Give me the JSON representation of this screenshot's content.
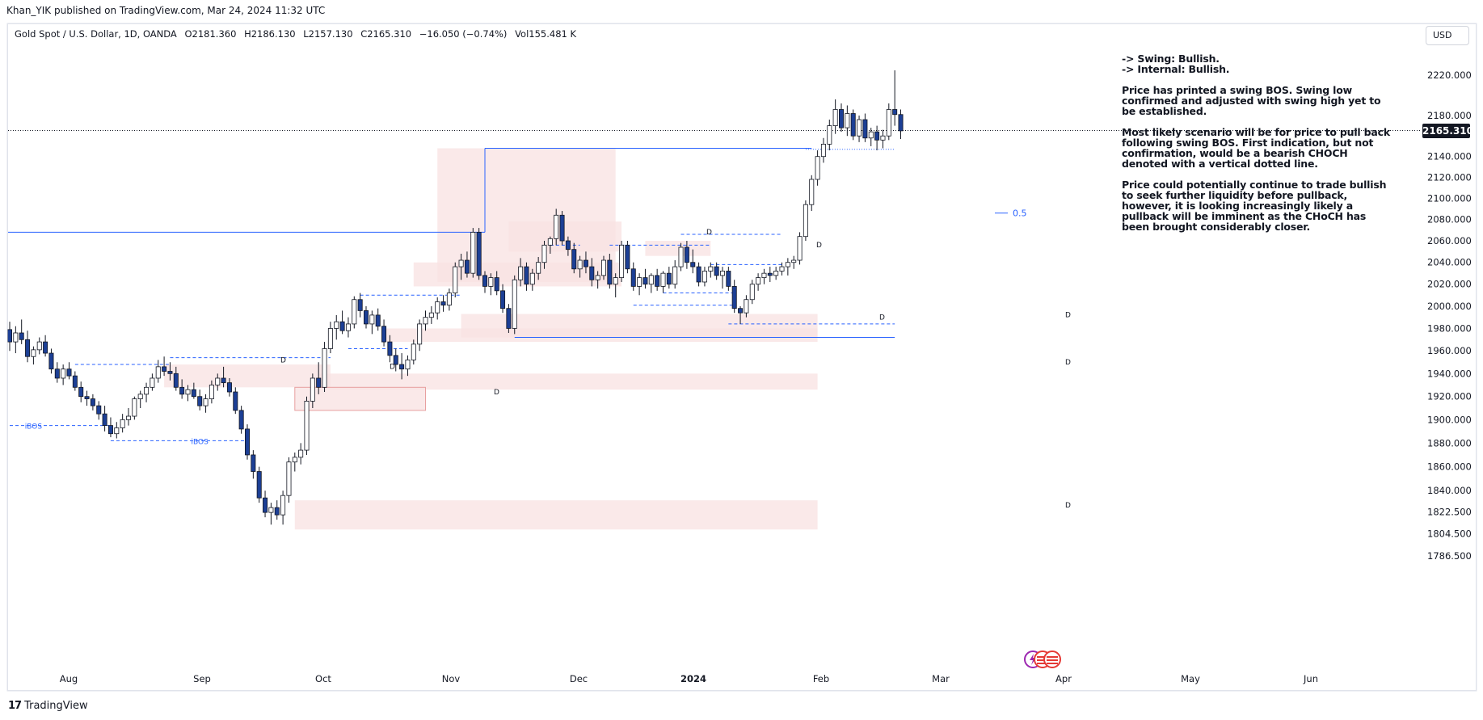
{
  "header": {
    "published": "Khan_YIK published on TradingView.com, Mar 24, 2024 11:32 UTC"
  },
  "symbol": {
    "name": "Gold Spot / U.S. Dollar, 1D, OANDA",
    "open": "O2181.360",
    "high": "H2186.130",
    "low": "L2157.130",
    "close": "C2165.310",
    "change": "−16.050 (−0.74%)",
    "volume": "Vol155.481 K"
  },
  "currency_button": "USD",
  "last_price_tag": "2165.310",
  "notes": {
    "line1": "-> Swing: Bullish.",
    "line2": "-> Internal: Bullish.",
    "p1": "Price has printed a swing BOS.  Swing low confirmed and adjusted with swing high yet to be established.",
    "p2": "Most likely scenario will be for price to pull back following swing BOS.  First indication, but not confirmation, would be a bearish CHOCH denoted with a vertical dotted line.",
    "p3": "Price could potentially continue to trade bullish to seek further liquidity before pullback, however, it is looking increasingly likely a pullback will be imminent as the CHoCH has been brought considerably closer."
  },
  "footer": {
    "brand": "TradingView"
  },
  "colors": {
    "bull_candle": "#ffffff",
    "bear_candle": "#1c3f95",
    "wick": "#131722",
    "zone_fill": "#f8e1e1",
    "level_line": "#2962ff",
    "grid": "#f0f3fa"
  },
  "chart_data": {
    "type": "candlestick",
    "title": "",
    "y_axis": {
      "ticks": [
        "2220.000",
        "2180.000",
        "2140.000",
        "2120.000",
        "2100.000",
        "2080.000",
        "2060.000",
        "2040.000",
        "2020.000",
        "2000.000",
        "1980.000",
        "1960.000",
        "1940.000",
        "1920.000",
        "1900.000",
        "1880.000",
        "1860.000",
        "1840.000",
        "1822.500",
        "1804.500",
        "1786.500"
      ],
      "scale": "log"
    },
    "x_axis": {
      "ticks": [
        "Aug",
        "Sep",
        "Oct",
        "Nov",
        "Dec",
        "2024",
        "Feb",
        "Mar",
        "Apr",
        "May",
        "Jun"
      ]
    },
    "last_price": 2165.31,
    "annotations": {
      "ibos_labels": [
        "iBOS",
        "iBOS"
      ],
      "zone_markers": [
        "D",
        "D",
        "D",
        "D",
        "D",
        "D",
        "D",
        "D",
        "D"
      ],
      "fib_label": "0.5"
    },
    "candles": [
      [
        1979,
        1986,
        1960,
        1968
      ],
      [
        1968,
        1982,
        1958,
        1976
      ],
      [
        1976,
        1988,
        1966,
        1970
      ],
      [
        1970,
        1978,
        1950,
        1955
      ],
      [
        1955,
        1964,
        1948,
        1961
      ],
      [
        1961,
        1972,
        1957,
        1968
      ],
      [
        1968,
        1974,
        1955,
        1958
      ],
      [
        1958,
        1962,
        1940,
        1944
      ],
      [
        1944,
        1950,
        1932,
        1936
      ],
      [
        1936,
        1948,
        1930,
        1944
      ],
      [
        1944,
        1950,
        1935,
        1938
      ],
      [
        1938,
        1942,
        1925,
        1928
      ],
      [
        1928,
        1933,
        1915,
        1920
      ],
      [
        1920,
        1925,
        1912,
        1918
      ],
      [
        1918,
        1922,
        1908,
        1912
      ],
      [
        1912,
        1916,
        1900,
        1905
      ],
      [
        1905,
        1912,
        1890,
        1895
      ],
      [
        1895,
        1902,
        1885,
        1888
      ],
      [
        1888,
        1898,
        1884,
        1893
      ],
      [
        1893,
        1905,
        1889,
        1900
      ],
      [
        1900,
        1910,
        1895,
        1903
      ],
      [
        1903,
        1920,
        1900,
        1918
      ],
      [
        1918,
        1925,
        1910,
        1922
      ],
      [
        1922,
        1932,
        1915,
        1928
      ],
      [
        1928,
        1940,
        1925,
        1936
      ],
      [
        1936,
        1952,
        1932,
        1946
      ],
      [
        1946,
        1955,
        1938,
        1942
      ],
      [
        1942,
        1950,
        1934,
        1940
      ],
      [
        1940,
        1946,
        1925,
        1928
      ],
      [
        1928,
        1935,
        1918,
        1922
      ],
      [
        1922,
        1930,
        1916,
        1926
      ],
      [
        1926,
        1932,
        1918,
        1920
      ],
      [
        1920,
        1926,
        1908,
        1912
      ],
      [
        1912,
        1922,
        1906,
        1918
      ],
      [
        1918,
        1934,
        1914,
        1930
      ],
      [
        1930,
        1940,
        1925,
        1936
      ],
      [
        1936,
        1946,
        1928,
        1932
      ],
      [
        1932,
        1936,
        1920,
        1924
      ],
      [
        1924,
        1928,
        1905,
        1908
      ],
      [
        1908,
        1912,
        1888,
        1892
      ],
      [
        1892,
        1896,
        1866,
        1870
      ],
      [
        1870,
        1874,
        1850,
        1856
      ],
      [
        1856,
        1860,
        1830,
        1834
      ],
      [
        1834,
        1840,
        1818,
        1822
      ],
      [
        1822,
        1830,
        1812,
        1826
      ],
      [
        1826,
        1832,
        1816,
        1820
      ],
      [
        1820,
        1840,
        1812,
        1836
      ],
      [
        1836,
        1868,
        1830,
        1864
      ],
      [
        1864,
        1872,
        1856,
        1868
      ],
      [
        1868,
        1880,
        1862,
        1874
      ],
      [
        1874,
        1920,
        1870,
        1916
      ],
      [
        1916,
        1940,
        1910,
        1936
      ],
      [
        1936,
        1950,
        1922,
        1928
      ],
      [
        1928,
        1968,
        1924,
        1962
      ],
      [
        1962,
        1986,
        1958,
        1980
      ],
      [
        1980,
        1992,
        1970,
        1986
      ],
      [
        1986,
        1996,
        1975,
        1978
      ],
      [
        1978,
        1990,
        1972,
        1984
      ],
      [
        1984,
        2009,
        1980,
        2006
      ],
      [
        2006,
        2012,
        1990,
        1996
      ],
      [
        1996,
        2000,
        1980,
        1984
      ],
      [
        1984,
        1996,
        1975,
        1992
      ],
      [
        1992,
        1998,
        1978,
        1982
      ],
      [
        1982,
        1988,
        1964,
        1968
      ],
      [
        1968,
        1974,
        1950,
        1956
      ],
      [
        1956,
        1962,
        1942,
        1948
      ],
      [
        1948,
        1958,
        1935,
        1944
      ],
      [
        1944,
        1956,
        1938,
        1952
      ],
      [
        1952,
        1970,
        1948,
        1966
      ],
      [
        1966,
        1988,
        1960,
        1984
      ],
      [
        1984,
        1996,
        1978,
        1990
      ],
      [
        1990,
        2000,
        1984,
        1994
      ],
      [
        1994,
        2008,
        1988,
        2004
      ],
      [
        2004,
        2010,
        1995,
        2001
      ],
      [
        2001,
        2016,
        1996,
        2012
      ],
      [
        2012,
        2040,
        2008,
        2036
      ],
      [
        2036,
        2048,
        2024,
        2042
      ],
      [
        2042,
        2050,
        2026,
        2030
      ],
      [
        2030,
        2072,
        2026,
        2068
      ],
      [
        2068,
        2072,
        2024,
        2028
      ],
      [
        2028,
        2032,
        2012,
        2018
      ],
      [
        2018,
        2030,
        2010,
        2026
      ],
      [
        2026,
        2032,
        2010,
        2014
      ],
      [
        2014,
        2020,
        1994,
        1998
      ],
      [
        1998,
        2002,
        1976,
        1980
      ],
      [
        1980,
        2028,
        1975,
        2024
      ],
      [
        2024,
        2044,
        2018,
        2036
      ],
      [
        2036,
        2040,
        2014,
        2020
      ],
      [
        2020,
        2034,
        2014,
        2030
      ],
      [
        2030,
        2045,
        2024,
        2040
      ],
      [
        2040,
        2060,
        2034,
        2056
      ],
      [
        2056,
        2064,
        2048,
        2062
      ],
      [
        2062,
        2090,
        2056,
        2084
      ],
      [
        2084,
        2088,
        2056,
        2060
      ],
      [
        2060,
        2064,
        2046,
        2052
      ],
      [
        2052,
        2058,
        2030,
        2034
      ],
      [
        2034,
        2046,
        2026,
        2042
      ],
      [
        2042,
        2050,
        2030,
        2036
      ],
      [
        2036,
        2044,
        2018,
        2024
      ],
      [
        2024,
        2032,
        2016,
        2028
      ],
      [
        2028,
        2046,
        2024,
        2042
      ],
      [
        2042,
        2048,
        2016,
        2020
      ],
      [
        2020,
        2030,
        2008,
        2026
      ],
      [
        2026,
        2060,
        2022,
        2056
      ],
      [
        2056,
        2060,
        2030,
        2034
      ],
      [
        2034,
        2040,
        2014,
        2018
      ],
      [
        2018,
        2030,
        2010,
        2026
      ],
      [
        2026,
        2034,
        2016,
        2020
      ],
      [
        2020,
        2030,
        2012,
        2028
      ],
      [
        2028,
        2034,
        2014,
        2018
      ],
      [
        2018,
        2032,
        2012,
        2030
      ],
      [
        2030,
        2036,
        2016,
        2020
      ],
      [
        2020,
        2042,
        2016,
        2036
      ],
      [
        2036,
        2058,
        2032,
        2054
      ],
      [
        2054,
        2060,
        2034,
        2040
      ],
      [
        2040,
        2052,
        2030,
        2036
      ],
      [
        2036,
        2040,
        2018,
        2022
      ],
      [
        2022,
        2036,
        2018,
        2032
      ],
      [
        2032,
        2040,
        2026,
        2036
      ],
      [
        2036,
        2040,
        2024,
        2028
      ],
      [
        2028,
        2036,
        2016,
        2032
      ],
      [
        2032,
        2036,
        2014,
        2018
      ],
      [
        2018,
        2024,
        1994,
        1998
      ],
      [
        1998,
        2000,
        1984,
        1994
      ],
      [
        1994,
        2010,
        1990,
        2006
      ],
      [
        2006,
        2024,
        2002,
        2020
      ],
      [
        2020,
        2030,
        2014,
        2026
      ],
      [
        2026,
        2034,
        2020,
        2030
      ],
      [
        2030,
        2036,
        2022,
        2028
      ],
      [
        2028,
        2036,
        2024,
        2032
      ],
      [
        2032,
        2040,
        2028,
        2036
      ],
      [
        2036,
        2044,
        2028,
        2040
      ],
      [
        2040,
        2046,
        2034,
        2042
      ],
      [
        2042,
        2068,
        2038,
        2064
      ],
      [
        2064,
        2098,
        2060,
        2094
      ],
      [
        2094,
        2122,
        2088,
        2118
      ],
      [
        2118,
        2146,
        2112,
        2140
      ],
      [
        2140,
        2158,
        2134,
        2152
      ],
      [
        2152,
        2176,
        2146,
        2170
      ],
      [
        2170,
        2196,
        2162,
        2186
      ],
      [
        2186,
        2192,
        2164,
        2168
      ],
      [
        2168,
        2190,
        2160,
        2182
      ],
      [
        2182,
        2186,
        2156,
        2160
      ],
      [
        2160,
        2180,
        2154,
        2176
      ],
      [
        2176,
        2182,
        2154,
        2158
      ],
      [
        2158,
        2168,
        2150,
        2164
      ],
      [
        2164,
        2170,
        2146,
        2156
      ],
      [
        2156,
        2166,
        2148,
        2160
      ],
      [
        2160,
        2192,
        2156,
        2186
      ],
      [
        2186,
        2225,
        2170,
        2181
      ],
      [
        2181,
        2186,
        2157,
        2165
      ]
    ]
  }
}
